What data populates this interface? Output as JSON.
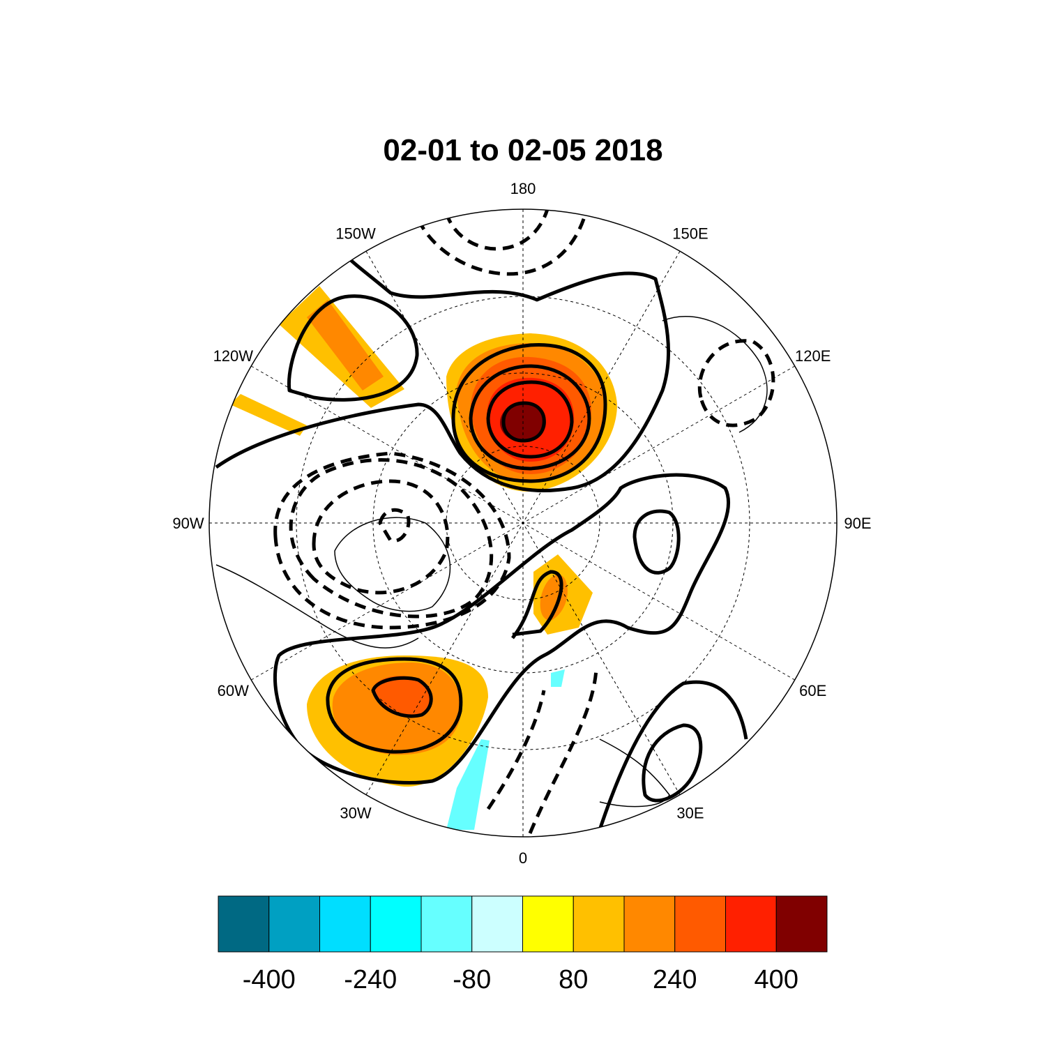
{
  "title": "02-01 to 02-05 2018",
  "lon_labels": [
    "0",
    "30E",
    "60E",
    "90E",
    "120E",
    "150E",
    "180",
    "150W",
    "120W",
    "90W",
    "60W",
    "30W"
  ],
  "colorbar": {
    "lim": [
      -480,
      480
    ],
    "ticks": [
      -400,
      -240,
      -80,
      80,
      240,
      400
    ],
    "colors": [
      "#006983",
      "#00a0c2",
      "#00deff",
      "#00ffff",
      "#66ffff",
      "#ccffff",
      "#ffff00",
      "#ffc000",
      "#ff8800",
      "#ff5a00",
      "#ff2000",
      "#800000"
    ]
  }
}
